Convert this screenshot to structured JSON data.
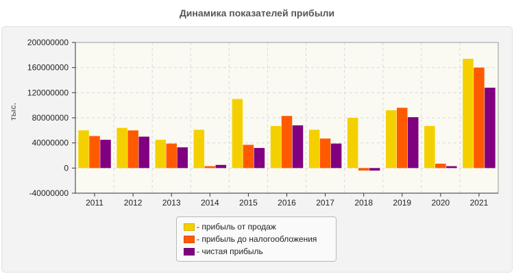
{
  "chart_data": {
    "type": "bar",
    "title": "Динамика показателей прибыли",
    "ylabel": "тыс.",
    "xlabel": "",
    "categories": [
      "2011",
      "2012",
      "2013",
      "2014",
      "2015",
      "2016",
      "2017",
      "2018",
      "2019",
      "2020",
      "2021"
    ],
    "series": [
      {
        "name": "- прибыль от продаж",
        "color": "#f5d000",
        "values": [
          60000000,
          64000000,
          45000000,
          61000000,
          110000000,
          67000000,
          61000000,
          80000000,
          92000000,
          67000000,
          174000000
        ]
      },
      {
        "name": "- прибыль до налогообложения",
        "color": "#ff5a00",
        "values": [
          51000000,
          60000000,
          39000000,
          3000000,
          37000000,
          83000000,
          47000000,
          -4000000,
          96000000,
          7000000,
          160000000
        ]
      },
      {
        "name": "- чистая прибыль",
        "color": "#800080",
        "values": [
          45000000,
          50000000,
          33000000,
          5000000,
          32000000,
          68000000,
          39000000,
          -4000000,
          81000000,
          3000000,
          128000000
        ]
      }
    ],
    "ylim": [
      -40000000,
      200000000
    ],
    "yticks": [
      "200000000",
      "160000000",
      "120000000",
      "80000000",
      "40000000",
      "0",
      "-40000000"
    ],
    "grid": true,
    "legend_position": "bottom-center"
  }
}
